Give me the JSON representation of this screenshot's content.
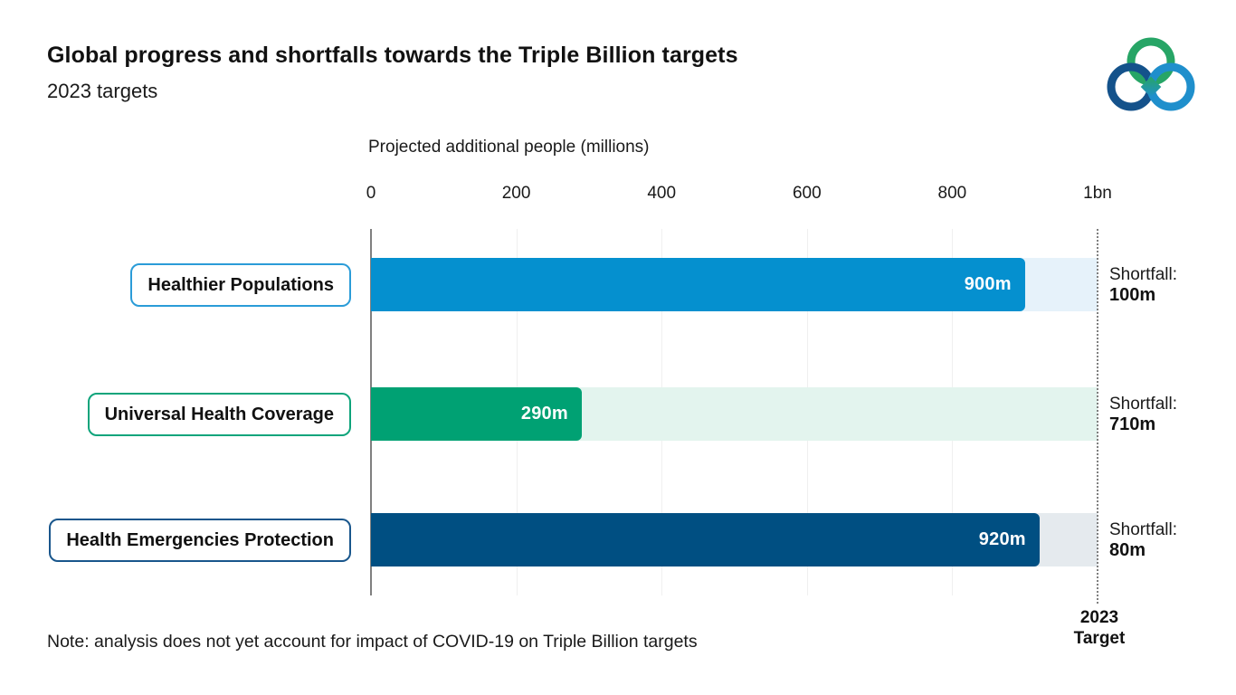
{
  "page": {
    "title": "Global progress and shortfalls towards the Triple Billion targets",
    "subtitle": "2023 targets",
    "note": "Note: analysis does not yet account for impact of COVID-19 on Triple Billion targets",
    "logo": {
      "name": "triple-billion-logo",
      "green": "#27A566",
      "dark_blue": "#14528B",
      "light_blue": "#1F8FCC"
    }
  },
  "chart_data": {
    "type": "bar",
    "orientation": "horizontal",
    "axis_title": "Projected additional people (millions)",
    "tick_labels": [
      "0",
      "200",
      "400",
      "600",
      "800",
      "1bn"
    ],
    "tick_values": [
      0,
      200,
      400,
      600,
      800,
      1000
    ],
    "x_range": [
      0,
      1000
    ],
    "grid": "vertical-light",
    "legend": "none",
    "target_value": 1000,
    "target_label_line1": "2023",
    "target_label_line2": "Target",
    "layout": {
      "axis_line_color": "#808080",
      "gridline_color": "#F0F0F0",
      "target_line_color": "#7F7F7F"
    },
    "rows": [
      {
        "category": "Healthier Populations",
        "value": 900,
        "value_label": "900m",
        "shortfall": 100,
        "shortfall_title": "Shortfall:",
        "shortfall_value": "100m",
        "bar_color": "#0590CF",
        "remainder_color": "#E6F2FA",
        "box_border_color": "#2B9CD8"
      },
      {
        "category": "Universal Health Coverage",
        "value": 290,
        "value_label": "290m",
        "shortfall": 710,
        "shortfall_title": "Shortfall:",
        "shortfall_value": "710m",
        "bar_color": "#00A173",
        "remainder_color": "#E3F4EE",
        "box_border_color": "#0EA47B"
      },
      {
        "category": "Health Emergencies Protection",
        "value": 920,
        "value_label": "920m",
        "shortfall": 80,
        "shortfall_title": "Shortfall:",
        "shortfall_value": "80m",
        "bar_color": "#004F82",
        "remainder_color": "#E5EAEE",
        "box_border_color": "#19568C"
      }
    ]
  }
}
